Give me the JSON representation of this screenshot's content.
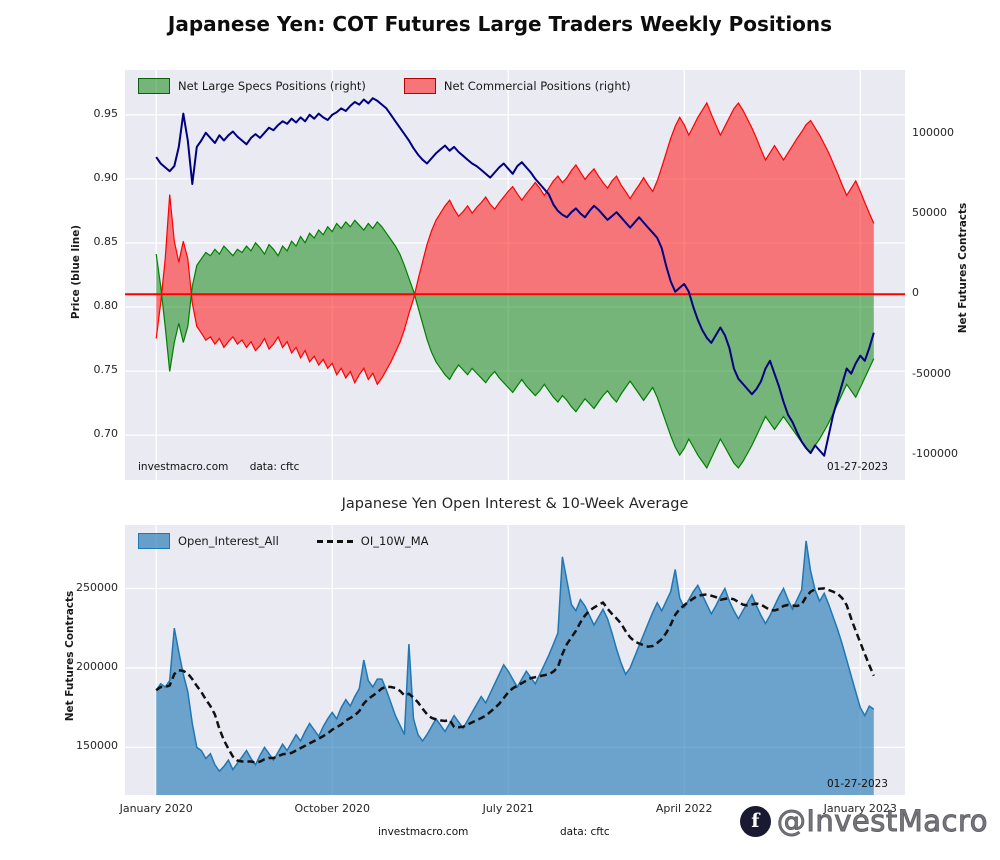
{
  "page": {
    "title": "Japanese Yen: COT Futures Large Traders Weekly Positions",
    "watermark_handle": "@InvestMacro",
    "watermark_icon": "f"
  },
  "colors": {
    "plot_background": "#eaeaf2",
    "grid": "#ffffff",
    "specs_green": "#008000",
    "commercials_red": "#ff0000",
    "price_blue": "#000080",
    "zero_line_red": "#ff0000",
    "open_interest_blue": "#1f77b4",
    "ma_black": "#111111"
  },
  "chart_data": [
    {
      "type": "area+line",
      "title": "Japanese Yen: COT Futures Large Traders Weekly Positions",
      "frequency": "weekly",
      "left_axis": {
        "label": "Price (blue line)",
        "tick_values": [
          0.7,
          0.75,
          0.8,
          0.85,
          0.9,
          0.95
        ],
        "tick_labels": [
          "0.70",
          "0.75",
          "0.80",
          "0.85",
          "0.90",
          "0.95"
        ],
        "range": [
          0.665,
          0.985
        ]
      },
      "right_axis": {
        "label": "Net Futures Contracts",
        "tick_values": [
          -100000,
          -50000,
          0,
          50000,
          100000
        ],
        "tick_labels": [
          "-100000",
          "-50000",
          "0",
          "50000",
          "100000"
        ],
        "range": [
          -115500,
          139500
        ]
      },
      "x_ticks": [
        {
          "index": 0,
          "label": "January 2020"
        },
        {
          "index": 39,
          "label": "October 2020"
        },
        {
          "index": 78,
          "label": "July 2021"
        },
        {
          "index": 117,
          "label": "April 2022"
        },
        {
          "index": 156,
          "label": "January 2023"
        }
      ],
      "show_x_labels": false,
      "zero_line": {
        "axis": "right",
        "value": 0,
        "color": "#ff0000",
        "width": 2
      },
      "annotations": {
        "source": "investmacro.com",
        "source_data": "data: cftc",
        "date": "01-27-2023"
      },
      "series": [
        {
          "name": "Net Large Specs Positions (right)",
          "type": "area",
          "axis": "right",
          "baseline": 0,
          "color": "#008000",
          "fill_opacity": 0.5,
          "values": [
            25000,
            5000,
            -20000,
            -48000,
            -30000,
            -18000,
            -30000,
            -20000,
            5000,
            18000,
            22000,
            26000,
            24000,
            28000,
            25000,
            30000,
            27000,
            24000,
            28000,
            26000,
            30000,
            27000,
            32000,
            29000,
            25000,
            31000,
            28000,
            24000,
            30000,
            27000,
            33000,
            30000,
            36000,
            32000,
            38000,
            35000,
            40000,
            37000,
            42000,
            39000,
            44000,
            41000,
            45000,
            42000,
            46000,
            43000,
            40000,
            44000,
            41000,
            45000,
            42000,
            38000,
            34000,
            30000,
            25000,
            18000,
            10000,
            2000,
            -8000,
            -18000,
            -28000,
            -36000,
            -42000,
            -46000,
            -50000,
            -53000,
            -48000,
            -44000,
            -47000,
            -50000,
            -46000,
            -49000,
            -52000,
            -55000,
            -51000,
            -48000,
            -52000,
            -55000,
            -58000,
            -61000,
            -57000,
            -53000,
            -57000,
            -60000,
            -63000,
            -60000,
            -56000,
            -60000,
            -64000,
            -67000,
            -63000,
            -66000,
            -70000,
            -73000,
            -69000,
            -65000,
            -68000,
            -71000,
            -67000,
            -63000,
            -60000,
            -64000,
            -67000,
            -62000,
            -58000,
            -54000,
            -58000,
            -62000,
            -66000,
            -62000,
            -58000,
            -64000,
            -72000,
            -80000,
            -88000,
            -95000,
            -100000,
            -96000,
            -90000,
            -95000,
            -100000,
            -104000,
            -108000,
            -102000,
            -96000,
            -90000,
            -95000,
            -100000,
            -105000,
            -108000,
            -104000,
            -99000,
            -94000,
            -88000,
            -82000,
            -76000,
            -80000,
            -84000,
            -80000,
            -76000,
            -80000,
            -84000,
            -88000,
            -92000,
            -96000,
            -98000,
            -94000,
            -90000,
            -85000,
            -80000,
            -74000,
            -68000,
            -62000,
            -56000,
            -60000,
            -64000,
            -58000,
            -52000,
            -46000,
            -40000
          ]
        },
        {
          "name": "Net Commercial Positions (right)",
          "type": "area",
          "axis": "right",
          "baseline": 0,
          "color": "#ff0000",
          "fill_opacity": 0.5,
          "values": [
            -27500,
            -5500,
            22000,
            62000,
            33000,
            20000,
            33000,
            22000,
            -5500,
            -20000,
            -24000,
            -28500,
            -26500,
            -31000,
            -27500,
            -33000,
            -29500,
            -26500,
            -31000,
            -28500,
            -33000,
            -29500,
            -35000,
            -32000,
            -27500,
            -34000,
            -31000,
            -26500,
            -33000,
            -29500,
            -36500,
            -33000,
            -39500,
            -35000,
            -42000,
            -38500,
            -44000,
            -40500,
            -46000,
            -43000,
            -50000,
            -46000,
            -52000,
            -48000,
            -55000,
            -50000,
            -46000,
            -53000,
            -49000,
            -56000,
            -52000,
            -47000,
            -42000,
            -36000,
            -30000,
            -22000,
            -12000,
            -3000,
            9000,
            20000,
            31000,
            39500,
            46000,
            50500,
            55000,
            58500,
            53000,
            48500,
            51500,
            55000,
            50500,
            54000,
            57000,
            60500,
            56000,
            53000,
            57000,
            60500,
            64000,
            67000,
            62500,
            58500,
            62500,
            66000,
            69500,
            66000,
            61500,
            66000,
            70500,
            73500,
            69500,
            72500,
            77000,
            80500,
            76000,
            71500,
            75000,
            78000,
            73500,
            69500,
            66000,
            70500,
            73500,
            68000,
            64000,
            59500,
            64000,
            68000,
            72500,
            68000,
            64000,
            70500,
            79000,
            88000,
            97000,
            104500,
            110000,
            105500,
            99000,
            104500,
            110000,
            114500,
            119000,
            112000,
            105500,
            99000,
            104500,
            110000,
            115500,
            119000,
            114500,
            109000,
            103500,
            97000,
            90000,
            83500,
            88000,
            92500,
            88000,
            83500,
            88000,
            92500,
            97000,
            101000,
            105500,
            108000,
            103500,
            99000,
            93500,
            88000,
            81500,
            75000,
            68000,
            61500,
            66000,
            70500,
            64000,
            57000,
            50500,
            44000
          ]
        },
        {
          "name": "Price",
          "type": "line",
          "axis": "left",
          "color": "#000080",
          "width": 2,
          "values": [
            0.917,
            0.912,
            0.909,
            0.906,
            0.91,
            0.925,
            0.951,
            0.93,
            0.896,
            0.925,
            0.93,
            0.936,
            0.932,
            0.928,
            0.934,
            0.93,
            0.934,
            0.937,
            0.933,
            0.93,
            0.927,
            0.932,
            0.935,
            0.932,
            0.936,
            0.94,
            0.938,
            0.942,
            0.945,
            0.943,
            0.947,
            0.944,
            0.948,
            0.945,
            0.95,
            0.947,
            0.951,
            0.948,
            0.946,
            0.95,
            0.952,
            0.955,
            0.953,
            0.957,
            0.96,
            0.958,
            0.962,
            0.959,
            0.963,
            0.961,
            0.958,
            0.955,
            0.95,
            0.945,
            0.94,
            0.935,
            0.93,
            0.924,
            0.919,
            0.915,
            0.912,
            0.916,
            0.92,
            0.923,
            0.926,
            0.922,
            0.925,
            0.921,
            0.918,
            0.915,
            0.912,
            0.91,
            0.907,
            0.904,
            0.901,
            0.905,
            0.909,
            0.912,
            0.908,
            0.904,
            0.91,
            0.913,
            0.909,
            0.905,
            0.9,
            0.896,
            0.892,
            0.888,
            0.88,
            0.875,
            0.872,
            0.87,
            0.874,
            0.877,
            0.873,
            0.87,
            0.875,
            0.879,
            0.876,
            0.872,
            0.868,
            0.871,
            0.874,
            0.87,
            0.866,
            0.862,
            0.866,
            0.87,
            0.866,
            0.862,
            0.858,
            0.854,
            0.846,
            0.832,
            0.82,
            0.812,
            0.815,
            0.818,
            0.812,
            0.8,
            0.79,
            0.782,
            0.776,
            0.772,
            0.778,
            0.784,
            0.778,
            0.768,
            0.752,
            0.744,
            0.74,
            0.736,
            0.732,
            0.736,
            0.742,
            0.752,
            0.758,
            0.748,
            0.738,
            0.726,
            0.716,
            0.71,
            0.702,
            0.695,
            0.69,
            0.686,
            0.692,
            0.688,
            0.684,
            0.7,
            0.716,
            0.728,
            0.74,
            0.752,
            0.748,
            0.756,
            0.762,
            0.758,
            0.768,
            0.78
          ]
        }
      ]
    },
    {
      "type": "area+line",
      "title": "Japanese Yen Open Interest & 10-Week Average",
      "frequency": "weekly",
      "left_axis": {
        "label": "Net Futures Contracts",
        "tick_values": [
          150000,
          200000,
          250000
        ],
        "tick_labels": [
          "150000",
          "200000",
          "250000"
        ],
        "range": [
          120000,
          290000
        ]
      },
      "x_ticks": [
        {
          "index": 0,
          "label": "January 2020"
        },
        {
          "index": 39,
          "label": "October 2020"
        },
        {
          "index": 78,
          "label": "July 2021"
        },
        {
          "index": 117,
          "label": "April 2022"
        },
        {
          "index": 156,
          "label": "January 2023"
        }
      ],
      "show_x_labels": true,
      "annotations": {
        "source": "investmacro.com",
        "source_data": "data: cftc",
        "date": "01-27-2023"
      },
      "series": [
        {
          "name": "Open_Interest_All",
          "type": "area",
          "color": "#1f77b4",
          "fill_opacity": 0.62,
          "edge_width": 1.5,
          "values": [
            186000,
            190000,
            188000,
            192000,
            225000,
            210000,
            196000,
            185000,
            165000,
            150000,
            148000,
            143000,
            146000,
            139000,
            135000,
            138000,
            142000,
            136000,
            140000,
            144000,
            148000,
            143000,
            139000,
            145000,
            150000,
            146000,
            142000,
            147000,
            152000,
            148000,
            153000,
            158000,
            154000,
            160000,
            165000,
            161000,
            157000,
            163000,
            168000,
            172000,
            168000,
            175000,
            180000,
            176000,
            182000,
            187000,
            205000,
            192000,
            188000,
            193000,
            193000,
            186000,
            178000,
            170000,
            164000,
            158000,
            215000,
            168000,
            158000,
            154000,
            158000,
            163000,
            168000,
            164000,
            160000,
            165000,
            170000,
            166000,
            162000,
            167000,
            172000,
            177000,
            182000,
            178000,
            184000,
            190000,
            196000,
            202000,
            198000,
            193000,
            188000,
            193000,
            198000,
            194000,
            190000,
            196000,
            202000,
            208000,
            215000,
            222000,
            270000,
            255000,
            240000,
            236000,
            243000,
            239000,
            233000,
            227000,
            232000,
            237000,
            231000,
            222000,
            212000,
            203000,
            196000,
            200000,
            207000,
            214000,
            221000,
            228000,
            235000,
            241000,
            236000,
            242000,
            248000,
            262000,
            244000,
            238000,
            243000,
            248000,
            252000,
            246000,
            240000,
            234000,
            239000,
            245000,
            250000,
            242000,
            236000,
            231000,
            236000,
            241000,
            246000,
            239000,
            233000,
            228000,
            233000,
            239000,
            245000,
            250000,
            243000,
            237000,
            243000,
            249000,
            280000,
            261000,
            249000,
            242000,
            247000,
            240000,
            232000,
            224000,
            215000,
            205000,
            195000,
            185000,
            175000,
            170000,
            176000,
            174000
          ]
        },
        {
          "name": "OI_10W_MA",
          "type": "line",
          "color": "#111111",
          "width": 2.5,
          "dash": "7,4",
          "derived_ma_of": 0,
          "window": 10,
          "derivation": "10-week trailing moving average of Open_Interest_All"
        }
      ]
    }
  ]
}
